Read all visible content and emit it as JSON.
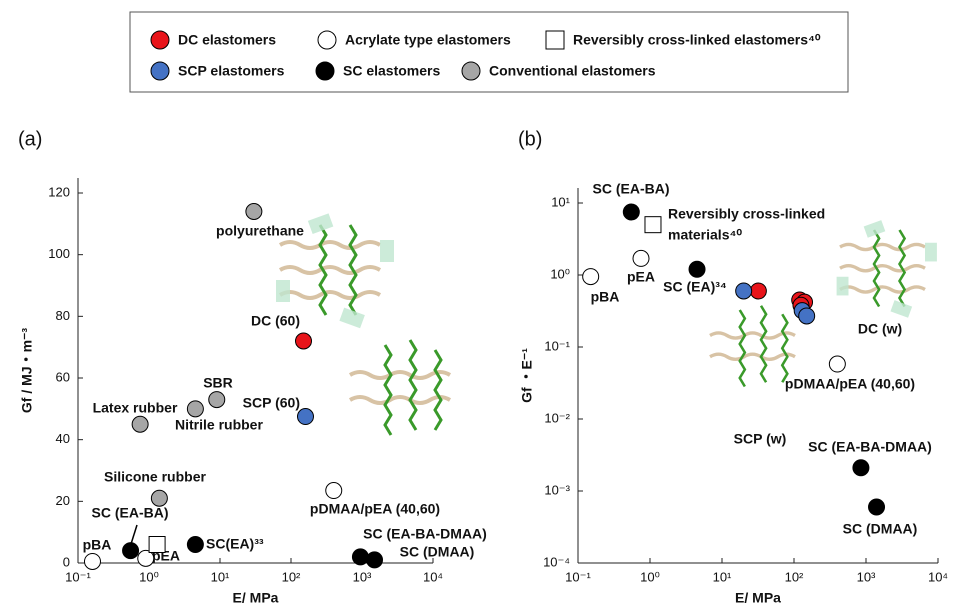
{
  "chart_data": [
    {
      "type": "scatter",
      "panel": "(a)",
      "x_label": "E/ MPa",
      "y_label": "Gf / MJ・m⁻³",
      "xscale": "log",
      "xlim": [
        0.1,
        10000
      ],
      "xticks": [
        {
          "value": 0.1,
          "label": "10⁻¹"
        },
        {
          "value": 1,
          "label": "10⁰"
        },
        {
          "value": 10,
          "label": "10¹"
        },
        {
          "value": 100,
          "label": "10²"
        },
        {
          "value": 1000,
          "label": "10³"
        },
        {
          "value": 10000,
          "label": "10⁴"
        }
      ],
      "ylim": [
        0,
        120
      ],
      "yticks": [
        0,
        20,
        40,
        60,
        80,
        100,
        120
      ],
      "series": [
        {
          "name": "DC elastomers",
          "color": "#e8141a",
          "x": [
            150
          ],
          "values": [
            72
          ],
          "labels": [
            "DC (60)"
          ]
        },
        {
          "name": "SCP elastomers",
          "color": "#4472c4",
          "x": [
            160
          ],
          "values": [
            47.5
          ],
          "labels": [
            "SCP (60)"
          ]
        },
        {
          "name": "Acrylate type elastomers",
          "color": "#ffffff",
          "x": [
            0.16,
            0.9,
            400
          ],
          "values": [
            0.5,
            1.5,
            23.5
          ],
          "labels": [
            "pBA",
            "pEA",
            "pDMAA/pEA (40,60)"
          ]
        },
        {
          "name": "Reversibly cross-linked elastomers⁴⁰",
          "color": "#ffffff",
          "marker": "square",
          "x": [
            1.3
          ],
          "values": [
            6
          ],
          "labels": [
            null
          ]
        },
        {
          "name": "SC elastomers",
          "color": "#000000",
          "x": [
            0.55,
            4.5,
            950,
            1500
          ],
          "values": [
            4,
            6,
            2,
            1
          ],
          "labels": [
            "SC (EA-BA)",
            "SC(EA)³³",
            "SC (EA-BA-DMAA)",
            "SC (DMAA)"
          ]
        },
        {
          "name": "Conventional elastomers",
          "color": "#a6a6a6",
          "x": [
            30,
            9,
            0.75,
            4.5,
            1.4
          ],
          "values": [
            114,
            53,
            45,
            50,
            21
          ],
          "labels": [
            "polyurethane",
            "SBR",
            "Latex rubber",
            "Nitrile rubber",
            "Silicone rubber"
          ]
        }
      ]
    },
    {
      "type": "scatter",
      "panel": "(b)",
      "x_label": "E/ MPa",
      "y_label": "Gf ・E⁻¹",
      "xscale": "log",
      "yscale": "log",
      "xlim": [
        0.1,
        10000
      ],
      "ylim": [
        0.0001,
        10
      ],
      "xticks": [
        {
          "value": 0.1,
          "label": "10⁻¹"
        },
        {
          "value": 1,
          "label": "10⁰"
        },
        {
          "value": 10,
          "label": "10¹"
        },
        {
          "value": 100,
          "label": "10²"
        },
        {
          "value": 1000,
          "label": "10³"
        },
        {
          "value": 10000,
          "label": "10⁴"
        }
      ],
      "yticks": [
        {
          "value": 0.0001,
          "label": "10⁻⁴"
        },
        {
          "value": 0.001,
          "label": "10⁻³"
        },
        {
          "value": 0.01,
          "label": "10⁻²"
        },
        {
          "value": 0.1,
          "label": "10⁻¹"
        },
        {
          "value": 1,
          "label": "10⁰"
        },
        {
          "value": 10,
          "label": "10¹"
        }
      ],
      "annotations": [
        "DC (w)",
        "SCP (w)"
      ],
      "series": [
        {
          "color": "#e8141a",
          "x": [
            32,
            120,
            140,
            125
          ],
          "values": [
            0.6,
            0.45,
            0.42,
            0.38
          ]
        },
        {
          "color": "#4472c4",
          "x": [
            20,
            130,
            150
          ],
          "values": [
            0.6,
            0.32,
            0.27
          ]
        },
        {
          "color": "#ffffff",
          "x": [
            0.15,
            0.75,
            400
          ],
          "values": [
            0.95,
            1.7,
            0.058
          ],
          "labels": [
            "pBA",
            "pEA",
            "pDMAA/pEA (40,60)"
          ]
        },
        {
          "color": "#ffffff",
          "marker": "square",
          "x": [
            1.1
          ],
          "values": [
            5
          ],
          "labels": [
            [
              "Reversibly cross-linked",
              "materials⁴⁰"
            ]
          ]
        },
        {
          "color": "#000000",
          "x": [
            0.55,
            4.5,
            850,
            1400
          ],
          "values": [
            7.5,
            1.2,
            0.0021,
            0.0006
          ],
          "labels": [
            "SC (EA-BA)",
            "SC (EA)³⁴",
            "SC (EA-BA-DMAA)",
            "SC (DMAA)"
          ]
        }
      ]
    }
  ]
}
